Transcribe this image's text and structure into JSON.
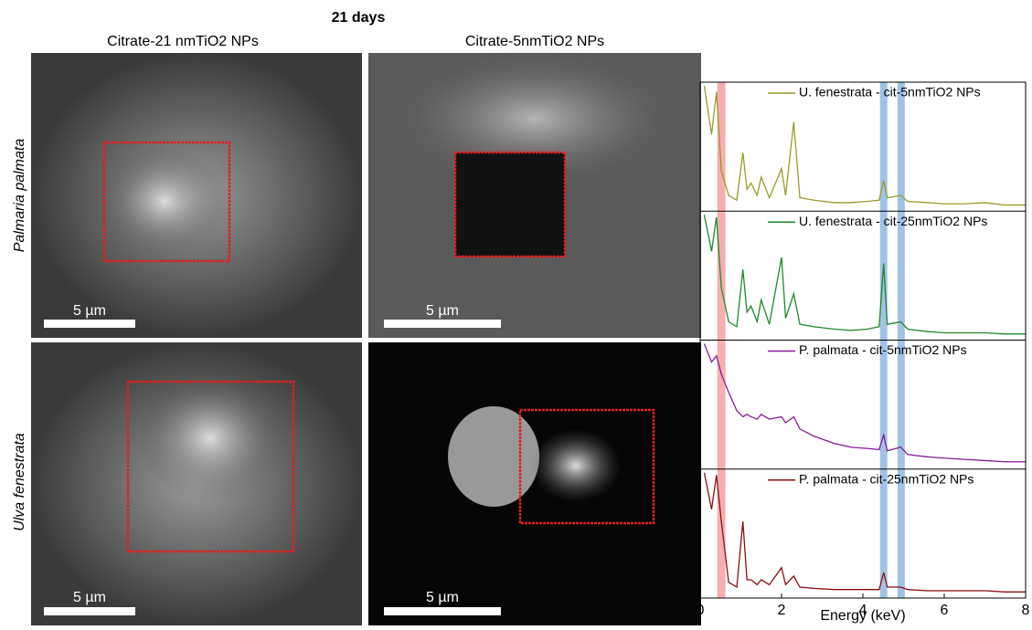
{
  "title": "21 days",
  "column_headers": [
    "Citrate-21 nmTiO2 NPs",
    "Citrate-5nmTiO2 NPs"
  ],
  "row_labels": [
    "Palmaria palmata",
    "Ulva fenestrata"
  ],
  "scale_bars": [
    "5 µm",
    "5 µm",
    "5 µm",
    "5 µm"
  ],
  "chart_data": {
    "type": "line",
    "xlabel": "Energy (keV)",
    "xlim": [
      0,
      8
    ],
    "xticks": [
      0,
      2,
      4,
      6,
      8
    ],
    "ylim": [
      0,
      100
    ],
    "bands": [
      {
        "range": [
          0.42,
          0.62
        ],
        "color": "#f4a0a0"
      },
      {
        "range": [
          4.42,
          4.6
        ],
        "color": "#8fb8e0"
      },
      {
        "range": [
          4.85,
          5.03
        ],
        "color": "#8fb8e0"
      }
    ],
    "x": [
      0.1,
      0.28,
      0.4,
      0.52,
      0.7,
      0.9,
      1.05,
      1.15,
      1.25,
      1.4,
      1.5,
      1.7,
      2.0,
      2.1,
      2.3,
      2.45,
      2.8,
      3.3,
      3.7,
      4.1,
      4.4,
      4.51,
      4.6,
      4.93,
      5.1,
      5.6,
      6.0,
      6.5,
      7.0,
      7.5,
      8.0
    ],
    "series": [
      {
        "name": "U. fenestrata - cit-5nmTiO2 NPs",
        "color": "#9a9a2a",
        "values": [
          100,
          60,
          95,
          30,
          10,
          6,
          45,
          15,
          20,
          10,
          25,
          8,
          32,
          10,
          70,
          8,
          6,
          4,
          4,
          5,
          6,
          22,
          8,
          10,
          5,
          4,
          3,
          3,
          4,
          2,
          2
        ]
      },
      {
        "name": "U. fenestrata - cit-25nmTiO2 NPs",
        "color": "#1a8a2a",
        "values": [
          100,
          70,
          98,
          40,
          12,
          8,
          55,
          20,
          25,
          12,
          30,
          10,
          65,
          15,
          35,
          10,
          8,
          6,
          5,
          6,
          8,
          60,
          10,
          12,
          6,
          4,
          3,
          3,
          3,
          2,
          2
        ]
      },
      {
        "name": "P. palmata - cit-5nmTiO2 NPs",
        "color": "#8a1a9a",
        "values": [
          100,
          85,
          90,
          75,
          60,
          45,
          40,
          42,
          40,
          38,
          42,
          38,
          40,
          35,
          40,
          30,
          24,
          18,
          15,
          14,
          13,
          25,
          12,
          15,
          9,
          7,
          6,
          5,
          4,
          3,
          3
        ]
      },
      {
        "name": "P. palmata - cit-25nmTiO2 NPs",
        "color": "#8a1010",
        "values": [
          100,
          70,
          98,
          60,
          10,
          6,
          60,
          12,
          12,
          8,
          12,
          8,
          22,
          8,
          15,
          6,
          5,
          4,
          4,
          4,
          4,
          18,
          6,
          6,
          4,
          3,
          3,
          3,
          3,
          2,
          2
        ]
      }
    ]
  }
}
